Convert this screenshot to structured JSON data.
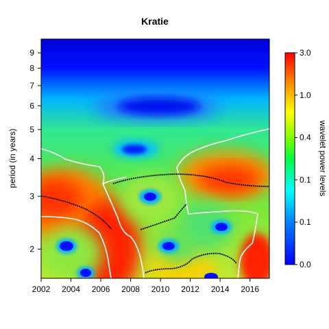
{
  "chart_data": {
    "type": "heatmap",
    "title": "Kratie",
    "xlabel": "",
    "ylabel": "period (in years)",
    "colorbar_label": "wavelet power levels",
    "x_range": [
      2002,
      2017.3
    ],
    "x_ticks": [
      "2002",
      "2004",
      "2006",
      "2008",
      "2010",
      "2012",
      "2014",
      "2016"
    ],
    "y_scale": "log2",
    "y_range": [
      1.6,
      10
    ],
    "y_ticks": [
      "2",
      "3",
      "4",
      "5",
      "6",
      "7",
      "8",
      "9"
    ],
    "colorbar_ticks": [
      "0.0",
      "0.1",
      "0.1",
      "0.4",
      "1.0",
      "3.0"
    ],
    "colorbar_colors": [
      "#0000ff",
      "#00ffff",
      "#00ff00",
      "#ffff00",
      "#ff8000",
      "#ff0000"
    ],
    "grid": false,
    "description_levels": {
      "blue_band_period": 9.3,
      "dark_blob_center": [
        2010.1,
        5.9
      ],
      "small_blob_center": [
        2008.1,
        4.1
      ]
    }
  }
}
